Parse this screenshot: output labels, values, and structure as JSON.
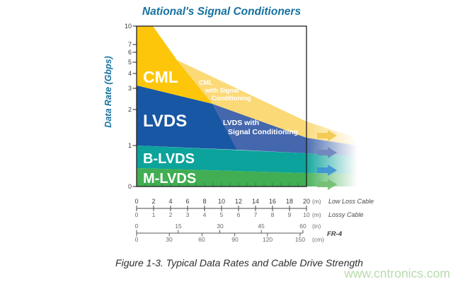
{
  "title": "National's Signal Conditioners",
  "caption": "Figure 1-3. Typical Data Rates and Cable Drive Strength",
  "watermark": "www.cntronics.com",
  "colors": {
    "title": "#16719f",
    "cml": "#fdc60b",
    "cml_conditioned": "#fbd977",
    "lvds": "#1757a4",
    "lvds_conditioned": "#4467ad",
    "blvds": "#0ba39b",
    "mlvds": "#41ae53",
    "watermark": "#abd49e",
    "arrows": [
      "#f3c94e",
      "#7286bd",
      "#3f94d4",
      "#74bf72"
    ]
  },
  "y_axis": {
    "label": "Data Rate (Gbps)",
    "ticks": [
      "10",
      "7",
      "6",
      "5",
      "4",
      "3",
      "2",
      "1",
      "0"
    ]
  },
  "bands": {
    "cml": "CML",
    "lvds": "LVDS",
    "blvds": "B-LVDS",
    "mlvds": "M-LVDS"
  },
  "overlays": {
    "cml_sc": {
      "line1": "CML",
      "line2": "with Signal",
      "line3": "Conditioning"
    },
    "lvds_sc": {
      "line1": "LVDS with",
      "line2": "Signal Conditioning"
    }
  },
  "rulers": {
    "low_loss": {
      "name": "Low Loss Cable",
      "unit": "(m)",
      "labels": [
        "0",
        "2",
        "4",
        "6",
        "8",
        "10",
        "12",
        "14",
        "16",
        "18",
        "20"
      ]
    },
    "lossy": {
      "name": "Lossy Cable",
      "unit": "(m)",
      "labels": [
        "0",
        "1",
        "2",
        "3",
        "4",
        "5",
        "6",
        "7",
        "8",
        "9",
        "10"
      ]
    },
    "fr4": {
      "name": "FR-4",
      "top_unit": "(in)",
      "top_labels": [
        "0",
        "15",
        "30",
        "45",
        "60"
      ],
      "bottom_unit": "(cm)",
      "bottom_labels": [
        "0",
        "30",
        "60",
        "90",
        "120",
        "150"
      ]
    }
  },
  "chart_data": {
    "type": "area",
    "title": "National's Signal Conditioners",
    "ylabel": "Data Rate (Gbps)",
    "y_scale": "log (1-10), 0 pinned at axis bottom",
    "ylim": [
      0,
      10
    ],
    "y_ticks": [
      10,
      7,
      6,
      5,
      4,
      3,
      2,
      1,
      0
    ],
    "x_axes": [
      {
        "name": "Low Loss Cable",
        "unit": "m",
        "ticks": [
          0,
          2,
          4,
          6,
          8,
          10,
          12,
          14,
          16,
          18,
          20
        ]
      },
      {
        "name": "Lossy Cable",
        "unit": "m",
        "ticks": [
          0,
          1,
          2,
          3,
          4,
          5,
          6,
          7,
          8,
          9,
          10
        ]
      },
      {
        "name": "FR-4",
        "unit_top": "in",
        "ticks_top": [
          0,
          15,
          30,
          45,
          60
        ],
        "unit_bottom": "cm",
        "ticks_bottom": [
          0,
          30,
          60,
          90,
          120,
          150
        ]
      }
    ],
    "bands": [
      {
        "name": "CML",
        "gbps_range_at_0m": [
          3,
          10
        ],
        "native_reach_m": 5,
        "top_boundary": {
          "x_m": [
            0,
            1.9,
            4.8,
            20
          ],
          "gbps": [
            10,
            10,
            5.2,
            1.6
          ]
        },
        "with_conditioning": {
          "label": "CML with Signal Conditioning",
          "reach_m": "20+",
          "gbps_range_at_20m": [
            1.2,
            1.6
          ]
        }
      },
      {
        "name": "LVDS",
        "gbps_range_at_0m": [
          1,
          3
        ],
        "native_reach_m": 11,
        "top_boundary": {
          "x_m": [
            0,
            9,
            20
          ],
          "gbps": [
            3,
            2.2,
            1.2
          ]
        },
        "with_conditioning": {
          "label": "LVDS with Signal Conditioning",
          "reach_m": "20+",
          "gbps_range_at_20m": [
            0.9,
            1.2
          ]
        }
      },
      {
        "name": "B-LVDS",
        "gbps_range_at_0m": [
          0.5,
          1
        ],
        "reach_m": "20+"
      },
      {
        "name": "M-LVDS",
        "gbps_range_at_0m": [
          0,
          0.5
        ],
        "reach_m": "20+"
      }
    ],
    "annotations": [
      "CML with Signal Conditioning",
      "LVDS with Signal Conditioning",
      "All four bands fade out past 20 m with right-pointing arrows"
    ],
    "legend_position": "labels drawn inside bands",
    "grid": false
  }
}
